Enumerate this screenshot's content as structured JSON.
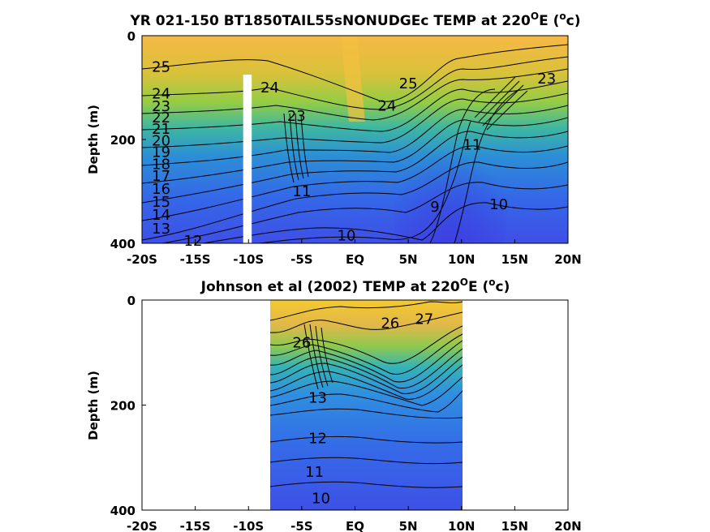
{
  "chart_data": [
    {
      "type": "contour",
      "title": "YR 021-150 BT1850TAIL55sNONUDGEc TEMP at 220",
      "title_sup": "O",
      "title_unit_pre": "E (",
      "title_unit_sup": "o",
      "title_unit_post": "c)",
      "ylabel": "Depth (m)",
      "xlim": [
        -20,
        20
      ],
      "ylim": [
        0,
        400
      ],
      "y_reversed": true,
      "x_ticks": [
        -20,
        -15,
        -10,
        -5,
        0,
        5,
        10,
        15,
        20
      ],
      "x_tick_labels": [
        "-20S",
        "-15S",
        "-10S",
        "-5S",
        "EQ",
        "5N",
        "10N",
        "15N",
        "20N"
      ],
      "y_ticks": [
        0,
        200,
        400
      ],
      "y_tick_labels": [
        "0",
        "200",
        "400"
      ],
      "data_extent_x": [
        -20,
        20
      ],
      "missing_band_x": [
        -10.5,
        -9.7
      ],
      "missing_band_depth": [
        75,
        400
      ],
      "contour_labels": [
        {
          "text": "25",
          "x": -18.2,
          "depth": 60
        },
        {
          "text": "24",
          "x": -18.2,
          "depth": 112
        },
        {
          "text": "23",
          "x": -18.2,
          "depth": 136
        },
        {
          "text": "22",
          "x": -18.2,
          "depth": 158
        },
        {
          "text": "21",
          "x": -18.2,
          "depth": 180
        },
        {
          "text": "20",
          "x": -18.2,
          "depth": 202
        },
        {
          "text": "19",
          "x": -18.2,
          "depth": 224
        },
        {
          "text": "18",
          "x": -18.2,
          "depth": 248
        },
        {
          "text": "17",
          "x": -18.2,
          "depth": 270
        },
        {
          "text": "16",
          "x": -18.2,
          "depth": 295
        },
        {
          "text": "15",
          "x": -18.2,
          "depth": 320
        },
        {
          "text": "14",
          "x": -18.2,
          "depth": 345
        },
        {
          "text": "13",
          "x": -18.2,
          "depth": 372
        },
        {
          "text": "12",
          "x": -15.2,
          "depth": 395
        },
        {
          "text": "24",
          "x": -8.0,
          "depth": 100
        },
        {
          "text": "23",
          "x": -5.5,
          "depth": 155
        },
        {
          "text": "11",
          "x": -5.0,
          "depth": 300
        },
        {
          "text": "10",
          "x": -0.8,
          "depth": 385
        },
        {
          "text": "25",
          "x": 5.0,
          "depth": 92
        },
        {
          "text": "24",
          "x": 3.0,
          "depth": 135
        },
        {
          "text": "9",
          "x": 7.5,
          "depth": 330
        },
        {
          "text": "11",
          "x": 11.0,
          "depth": 210
        },
        {
          "text": "10",
          "x": 13.5,
          "depth": 325
        },
        {
          "text": "23",
          "x": 18.0,
          "depth": 83
        }
      ]
    },
    {
      "type": "contour",
      "title": "Johnson et al (2002) TEMP at 220",
      "title_sup": "O",
      "title_unit_pre": "E (",
      "title_unit_sup": "o",
      "title_unit_post": "c)",
      "ylabel": "Depth (m)",
      "xlim": [
        -20,
        20
      ],
      "ylim": [
        0,
        400
      ],
      "y_reversed": true,
      "x_ticks": [
        -20,
        -15,
        -10,
        -5,
        0,
        5,
        10,
        15,
        20
      ],
      "x_tick_labels": [
        "-20S",
        "-15S",
        "-10S",
        "-5S",
        "EQ",
        "5N",
        "10N",
        "15N",
        "20N"
      ],
      "y_ticks": [
        0,
        200,
        400
      ],
      "y_tick_labels": [
        "0",
        "200",
        "400"
      ],
      "data_extent_x": [
        -8,
        10
      ],
      "contour_labels": [
        {
          "text": "27",
          "x": 6.5,
          "depth": 72
        },
        {
          "text": "26",
          "x": 3.3,
          "depth": 88
        },
        {
          "text": "26",
          "x": -5.0,
          "depth": 162
        },
        {
          "text": "13",
          "x": -3.5,
          "depth": 372
        },
        {
          "text": "12",
          "x": -3.5,
          "depth": 527
        },
        {
          "text": "11",
          "x": -3.8,
          "depth": 655
        },
        {
          "text": "10",
          "x": -3.2,
          "depth": 755
        }
      ]
    }
  ]
}
